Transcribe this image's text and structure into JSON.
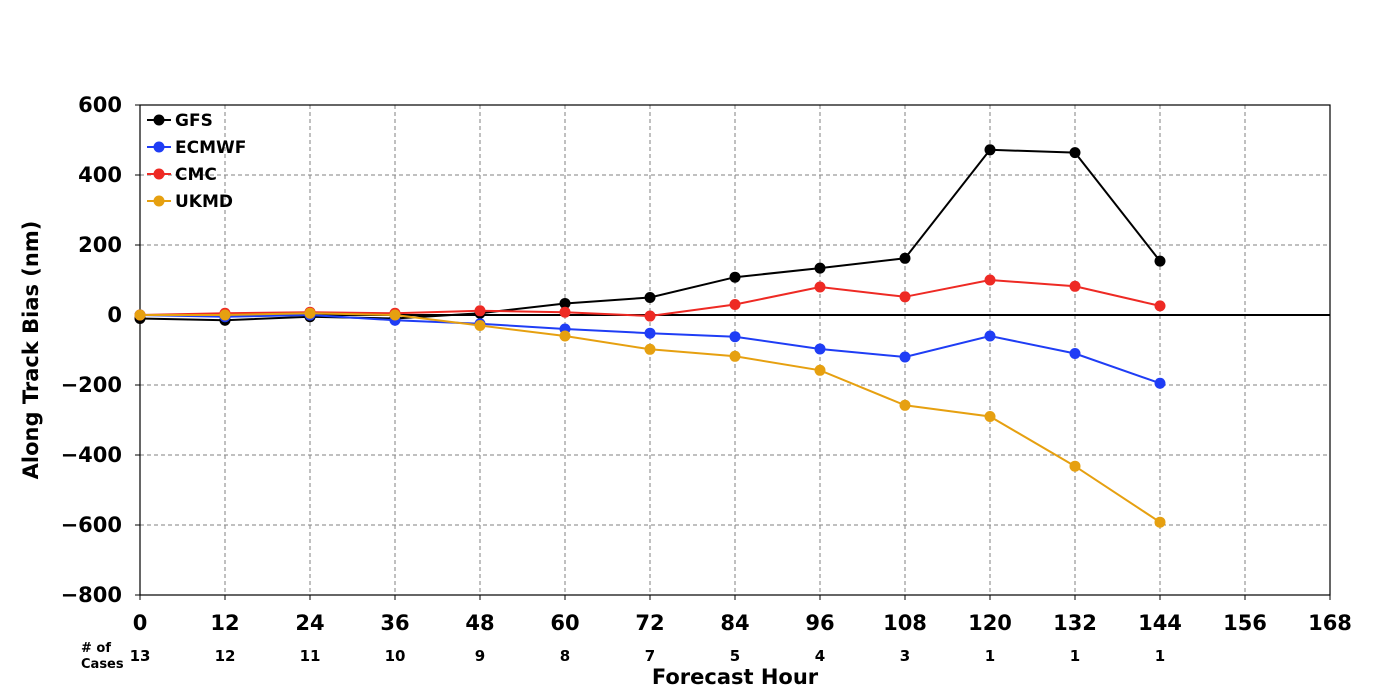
{
  "chart_data": {
    "type": "line",
    "xlabel": "Forecast Hour",
    "ylabel": "Along Track Bias (nm)",
    "xlim": [
      0,
      168
    ],
    "ylim": [
      -800,
      600
    ],
    "x_ticks": [
      "0",
      "12",
      "24",
      "36",
      "48",
      "60",
      "72",
      "84",
      "96",
      "108",
      "120",
      "132",
      "144",
      "156",
      "168"
    ],
    "y_ticks": [
      "600",
      "400",
      "200",
      "0",
      "−200",
      "−400",
      "−600",
      "−800"
    ],
    "grid": true,
    "legend_position": "top-left",
    "zero_line": true,
    "x": [
      0,
      12,
      24,
      36,
      48,
      60,
      72,
      84,
      96,
      108,
      120,
      132,
      144
    ],
    "series": [
      {
        "name": "GFS",
        "color": "#000000",
        "values": [
          -10,
          -15,
          -5,
          -10,
          5,
          33,
          50,
          108,
          134,
          162,
          472,
          464,
          154
        ]
      },
      {
        "name": "ECMWF",
        "color": "#1f3df5",
        "values": [
          0,
          -5,
          0,
          -15,
          -25,
          -40,
          -52,
          -62,
          -97,
          -120,
          -60,
          -110,
          -195
        ]
      },
      {
        "name": "CMC",
        "color": "#ee2a24",
        "values": [
          0,
          5,
          8,
          5,
          12,
          8,
          -3,
          30,
          80,
          52,
          100,
          82,
          26
        ]
      },
      {
        "name": "UKMD",
        "color": "#e6a010",
        "values": [
          0,
          0,
          5,
          0,
          -30,
          -60,
          -98,
          -118,
          -158,
          -258,
          -290,
          -432,
          -592
        ]
      }
    ],
    "cases": {
      "header_line1": "# of",
      "header_line2": "Cases",
      "values": [
        "13",
        "12",
        "11",
        "10",
        "9",
        "8",
        "7",
        "5",
        "4",
        "3",
        "1",
        "1",
        "1"
      ]
    }
  }
}
